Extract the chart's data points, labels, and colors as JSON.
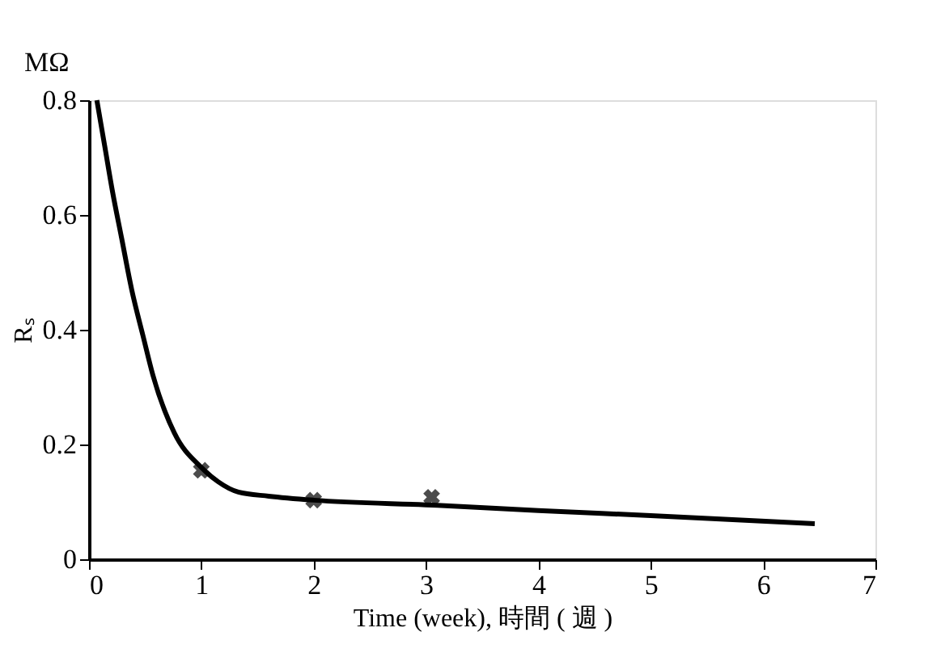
{
  "chart_data": {
    "type": "line",
    "xlabel": "Time (week),   時間 ( 週 )",
    "ylabel": "Rₛ",
    "annotations": [
      "MΩ"
    ],
    "xlim": [
      0,
      7
    ],
    "ylim": [
      0,
      0.8
    ],
    "xticks": [
      0,
      1,
      2,
      3,
      4,
      5,
      6,
      7
    ],
    "yticks": [
      0,
      0.2,
      0.4,
      0.6,
      0.8
    ],
    "grid": false,
    "series": [
      {
        "color": "#000000",
        "marker": "none",
        "line_style": "solid",
        "x": [
          0.07,
          0.14,
          0.21,
          0.29,
          0.38,
          0.48,
          0.57,
          0.76,
          1.0,
          1.15,
          1.33,
          1.6,
          2,
          3.1,
          4,
          5,
          6.46
        ],
        "values": [
          0.8,
          0.72,
          0.64,
          0.56,
          0.47,
          0.39,
          0.32,
          0.22,
          0.16,
          0.135,
          0.117,
          0.11,
          0.103,
          0.094,
          0.085,
          0.076,
          0.062
        ]
      },
      {
        "type": "scatter",
        "color": "#000000",
        "marker": "cross",
        "x": [
          1.0,
          2,
          3.05
        ],
        "values": [
          0.155,
          0.103,
          0.108
        ]
      }
    ]
  }
}
